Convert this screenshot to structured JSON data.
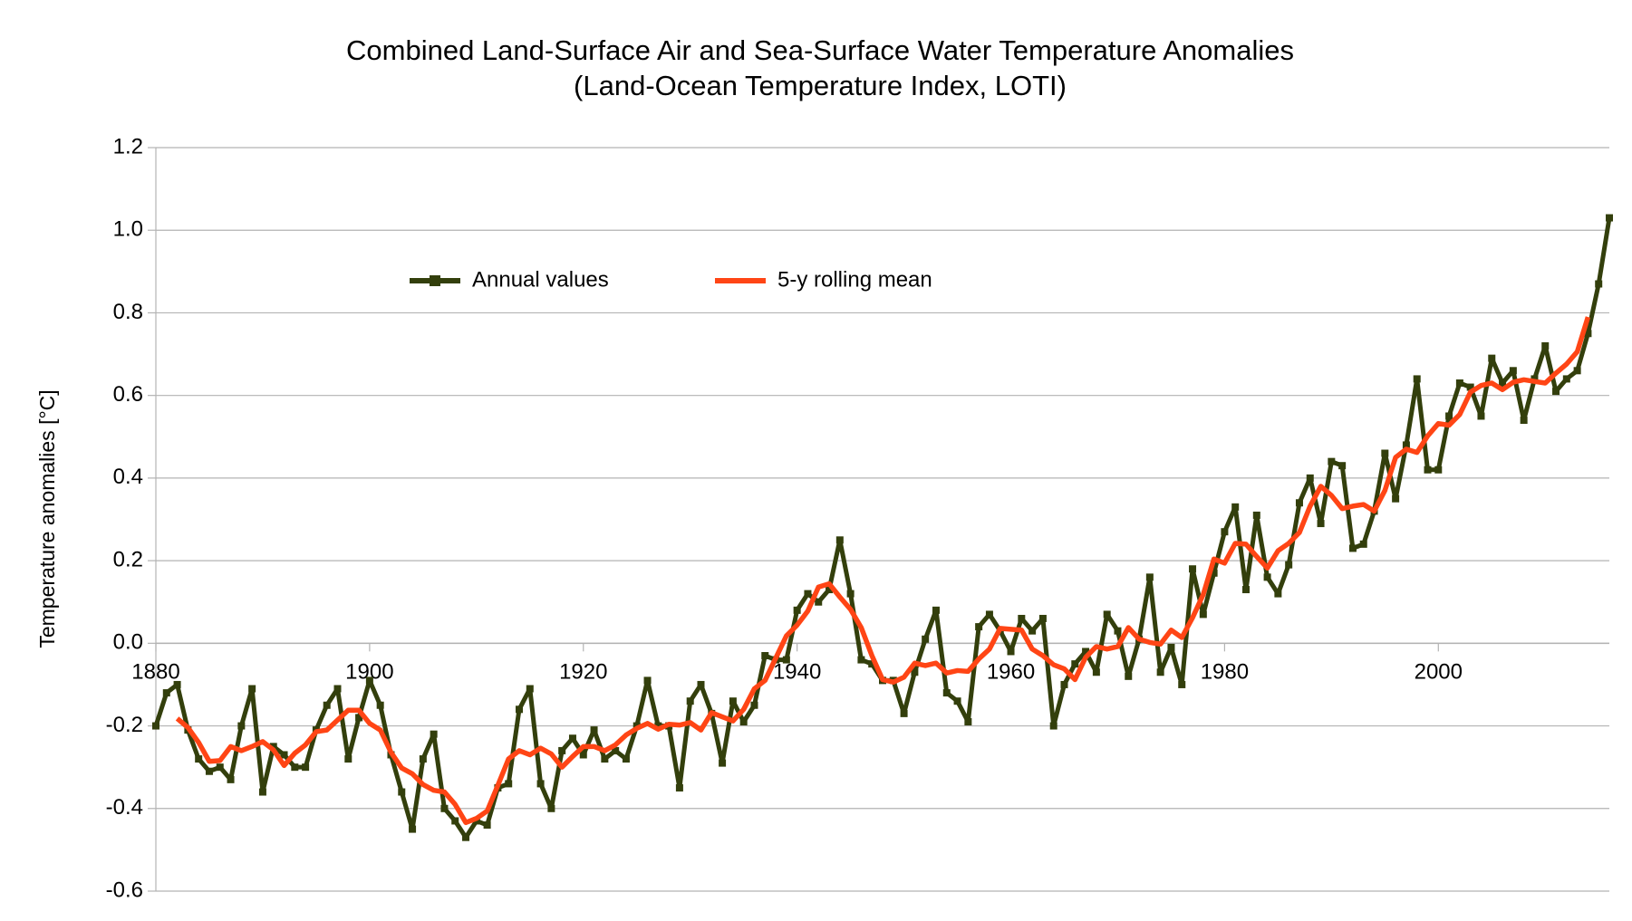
{
  "chart_data": {
    "type": "line",
    "title": "Combined Land-Surface Air and Sea-Surface Water Temperature Anomalies",
    "subtitle": "(Land-Ocean Temperature Index, LOTI)",
    "y_label": "Temperature anomalies [°C]",
    "x": [
      1880,
      1881,
      1882,
      1883,
      1884,
      1885,
      1886,
      1887,
      1888,
      1889,
      1890,
      1891,
      1892,
      1893,
      1894,
      1895,
      1896,
      1897,
      1898,
      1899,
      1900,
      1901,
      1902,
      1903,
      1904,
      1905,
      1906,
      1907,
      1908,
      1909,
      1910,
      1911,
      1912,
      1913,
      1914,
      1915,
      1916,
      1917,
      1918,
      1919,
      1920,
      1921,
      1922,
      1923,
      1924,
      1925,
      1926,
      1927,
      1928,
      1929,
      1930,
      1931,
      1932,
      1933,
      1934,
      1935,
      1936,
      1937,
      1938,
      1939,
      1940,
      1941,
      1942,
      1943,
      1944,
      1945,
      1946,
      1947,
      1948,
      1949,
      1950,
      1951,
      1952,
      1953,
      1954,
      1955,
      1956,
      1957,
      1958,
      1959,
      1960,
      1961,
      1962,
      1963,
      1964,
      1965,
      1966,
      1967,
      1968,
      1969,
      1970,
      1971,
      1972,
      1973,
      1974,
      1975,
      1976,
      1977,
      1978,
      1979,
      1980,
      1981,
      1982,
      1983,
      1984,
      1985,
      1986,
      1987,
      1988,
      1989,
      1990,
      1991,
      1992,
      1993,
      1994,
      1995,
      1996,
      1997,
      1998,
      1999,
      2000,
      2001,
      2002,
      2003,
      2004,
      2005,
      2006,
      2007,
      2008,
      2009,
      2010,
      2011,
      2012,
      2013,
      2014,
      2015,
      2016
    ],
    "series": [
      {
        "name": "Annual values",
        "color": "#333f0c",
        "marker": "square",
        "values": [
          -0.2,
          -0.12,
          -0.1,
          -0.21,
          -0.28,
          -0.31,
          -0.3,
          -0.33,
          -0.2,
          -0.11,
          -0.36,
          -0.25,
          -0.27,
          -0.3,
          -0.3,
          -0.21,
          -0.15,
          -0.11,
          -0.28,
          -0.18,
          -0.09,
          -0.15,
          -0.27,
          -0.36,
          -0.45,
          -0.28,
          -0.22,
          -0.4,
          -0.43,
          -0.47,
          -0.43,
          -0.44,
          -0.35,
          -0.34,
          -0.16,
          -0.11,
          -0.34,
          -0.4,
          -0.26,
          -0.23,
          -0.27,
          -0.21,
          -0.28,
          -0.26,
          -0.28,
          -0.2,
          -0.09,
          -0.2,
          -0.2,
          -0.35,
          -0.14,
          -0.1,
          -0.17,
          -0.29,
          -0.14,
          -0.19,
          -0.15,
          -0.03,
          -0.04,
          -0.04,
          0.08,
          0.12,
          0.1,
          0.13,
          0.25,
          0.12,
          -0.04,
          -0.05,
          -0.09,
          -0.09,
          -0.17,
          -0.07,
          0.01,
          0.08,
          -0.12,
          -0.14,
          -0.19,
          0.04,
          0.07,
          0.03,
          -0.02,
          0.06,
          0.03,
          0.06,
          -0.2,
          -0.1,
          -0.05,
          -0.02,
          -0.07,
          0.07,
          0.03,
          -0.08,
          0.01,
          0.16,
          -0.07,
          -0.01,
          -0.1,
          0.18,
          0.07,
          0.17,
          0.27,
          0.33,
          0.13,
          0.31,
          0.16,
          0.12,
          0.19,
          0.34,
          0.4,
          0.29,
          0.44,
          0.43,
          0.23,
          0.24,
          0.32,
          0.46,
          0.35,
          0.48,
          0.64,
          0.42,
          0.42,
          0.55,
          0.63,
          0.62,
          0.55,
          0.69,
          0.63,
          0.66,
          0.54,
          0.64,
          0.72,
          0.61,
          0.64,
          0.66,
          0.75,
          0.87,
          1.03
        ]
      },
      {
        "name": "5-y rolling mean",
        "color": "#ff4515",
        "marker": "none",
        "values": [
          null,
          null,
          -0.182,
          -0.204,
          -0.24,
          -0.286,
          -0.284,
          -0.25,
          -0.26,
          -0.25,
          -0.238,
          -0.258,
          -0.296,
          -0.266,
          -0.246,
          -0.214,
          -0.21,
          -0.186,
          -0.162,
          -0.162,
          -0.194,
          -0.21,
          -0.264,
          -0.302,
          -0.316,
          -0.342,
          -0.356,
          -0.36,
          -0.39,
          -0.434,
          -0.424,
          -0.406,
          -0.344,
          -0.28,
          -0.26,
          -0.27,
          -0.254,
          -0.268,
          -0.3,
          -0.274,
          -0.25,
          -0.25,
          -0.26,
          -0.246,
          -0.222,
          -0.206,
          -0.194,
          -0.208,
          -0.196,
          -0.198,
          -0.192,
          -0.21,
          -0.168,
          -0.178,
          -0.188,
          -0.16,
          -0.11,
          -0.09,
          -0.036,
          0.018,
          0.044,
          0.078,
          0.136,
          0.144,
          0.112,
          0.082,
          0.038,
          -0.03,
          -0.088,
          -0.094,
          -0.082,
          -0.048,
          -0.054,
          -0.048,
          -0.072,
          -0.066,
          -0.068,
          -0.038,
          -0.014,
          0.036,
          0.034,
          0.032,
          -0.014,
          -0.03,
          -0.052,
          -0.062,
          -0.088,
          -0.034,
          -0.008,
          -0.014,
          -0.008,
          0.038,
          0.01,
          0.002,
          -0.002,
          0.032,
          0.014,
          0.062,
          0.118,
          0.204,
          0.194,
          0.242,
          0.24,
          0.21,
          0.182,
          0.224,
          0.242,
          0.268,
          0.332,
          0.38,
          0.358,
          0.326,
          0.332,
          0.336,
          0.32,
          0.37,
          0.45,
          0.47,
          0.462,
          0.502,
          0.532,
          0.528,
          0.554,
          0.608,
          0.624,
          0.63,
          0.614,
          0.632,
          0.638,
          0.634,
          0.63,
          0.654,
          0.676,
          0.706,
          0.79,
          null,
          null
        ]
      }
    ],
    "xlim": [
      1880,
      2016
    ],
    "xticks": [
      1880,
      1900,
      1920,
      1940,
      1960,
      1980,
      2000
    ],
    "ylim": [
      -0.6,
      1.2
    ],
    "yticks": [
      -0.6,
      -0.4,
      -0.2,
      {
        "value": 0,
        "label": "0.0"
      },
      0.2,
      0.4,
      0.6,
      0.8,
      {
        "value": 1,
        "label": "1.0"
      },
      1.2
    ],
    "grid": true,
    "legend": "top"
  }
}
